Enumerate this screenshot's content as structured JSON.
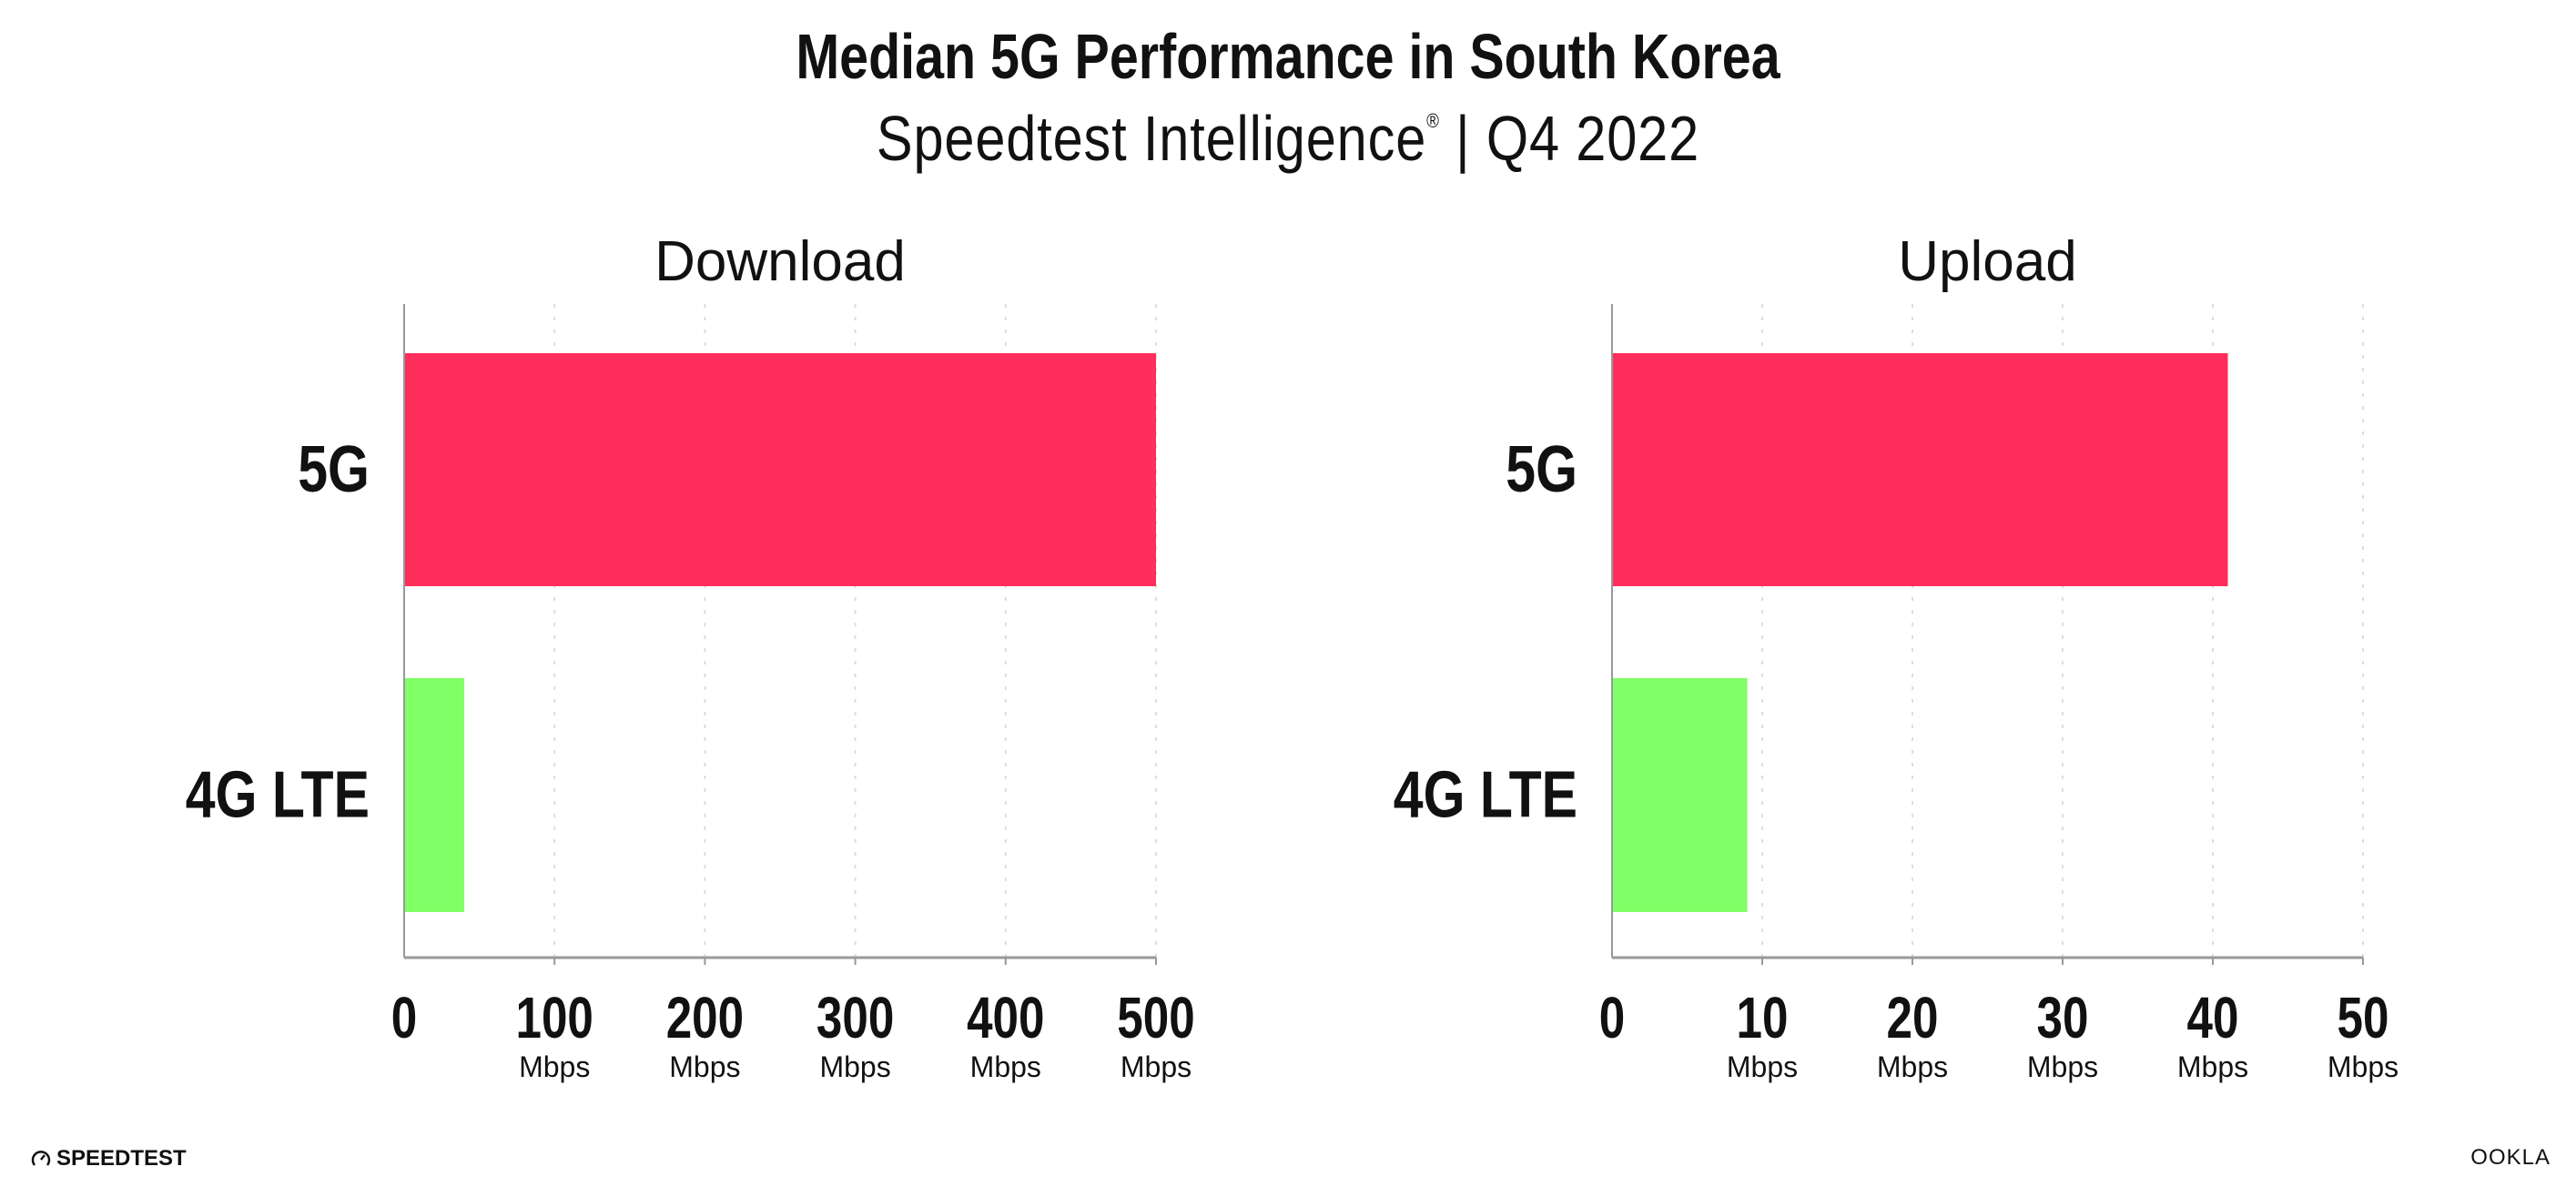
{
  "title": "Median 5G Performance in South Korea",
  "subtitle": "Speedtest Intelligence",
  "subtitle_mark": "®",
  "subtitle_period": "| Q4 2022",
  "colors": {
    "5G": "#ff2e5b",
    "4G LTE": "#80ff66",
    "axis": "#999999",
    "grid": "#dddddd"
  },
  "logos": {
    "left": "SPEEDTEST",
    "right": "OOKLA"
  },
  "chart_data": [
    {
      "type": "bar",
      "orientation": "horizontal",
      "title": "Download",
      "categories": [
        "5G",
        "4G LTE"
      ],
      "values": [
        500,
        40
      ],
      "xlim": [
        0,
        500
      ],
      "ticks": [
        "0",
        "100",
        "200",
        "300",
        "400",
        "500"
      ],
      "tick_unit": "Mbps",
      "grid": true
    },
    {
      "type": "bar",
      "orientation": "horizontal",
      "title": "Upload",
      "categories": [
        "5G",
        "4G LTE"
      ],
      "values": [
        41,
        9
      ],
      "xlim": [
        0,
        50
      ],
      "ticks": [
        "0",
        "10",
        "20",
        "30",
        "40",
        "50"
      ],
      "tick_unit": "Mbps",
      "grid": true
    }
  ]
}
